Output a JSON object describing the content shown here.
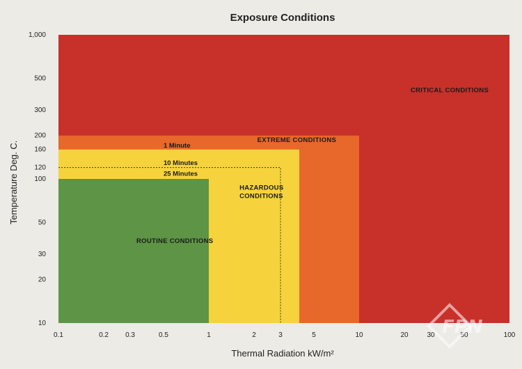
{
  "chart_data": {
    "type": "heatmap",
    "title": "Exposure Conditions",
    "xlabel": "Thermal Radiation kW/m²",
    "ylabel": "Temperature Deg. C.",
    "x_scale": "log",
    "y_scale": "log",
    "xlim": [
      0.1,
      100
    ],
    "ylim": [
      10,
      1000
    ],
    "x_ticks": [
      {
        "value": 0.1,
        "label": "0.1"
      },
      {
        "value": 0.2,
        "label": "0.2"
      },
      {
        "value": 0.3,
        "label": "0.3"
      },
      {
        "value": 0.5,
        "label": "0.5"
      },
      {
        "value": 1,
        "label": "1"
      },
      {
        "value": 2,
        "label": "2"
      },
      {
        "value": 3,
        "label": "3"
      },
      {
        "value": 5,
        "label": "5"
      },
      {
        "value": 10,
        "label": "10"
      },
      {
        "value": 20,
        "label": "20"
      },
      {
        "value": 30,
        "label": "30"
      },
      {
        "value": 50,
        "label": "50"
      },
      {
        "value": 100,
        "label": "100"
      }
    ],
    "y_ticks": [
      {
        "value": 10,
        "label": "10"
      },
      {
        "value": 20,
        "label": "20"
      },
      {
        "value": 30,
        "label": "30"
      },
      {
        "value": 50,
        "label": "50"
      },
      {
        "value": 100,
        "label": "100"
      },
      {
        "value": 120,
        "label": "120"
      },
      {
        "value": 160,
        "label": "160"
      },
      {
        "value": 200,
        "label": "200"
      },
      {
        "value": 300,
        "label": "300"
      },
      {
        "value": 500,
        "label": "500"
      },
      {
        "value": 1000,
        "label": "1,000"
      }
    ],
    "zones": [
      {
        "name": "CRITICAL CONDITIONS",
        "x_max": 100,
        "y_max": 1000,
        "color": "#c8302a",
        "label_at": [
          22,
          400
        ]
      },
      {
        "name": "EXTREME CONDITIONS",
        "x_max": 10,
        "y_max": 200,
        "color": "#e8672a",
        "label_at": [
          2.1,
          180
        ]
      },
      {
        "name": "HAZARDOUS CONDITIONS",
        "lines": [
          "HAZARDOUS",
          "CONDITIONS"
        ],
        "x_max": 4,
        "y_max": 160,
        "color": "#f6d33c",
        "label_at": [
          1.6,
          84
        ]
      },
      {
        "name": "ROUTINE CONDITIONS",
        "x_max": 1,
        "y_max": 100,
        "color": "#5e9445",
        "label_at": [
          0.33,
          36
        ]
      }
    ],
    "limits": [
      {
        "label": "1 Minute",
        "y": 160,
        "label_at": [
          0.5,
          165
        ]
      },
      {
        "label": "10 Minutes",
        "y": 120,
        "x_max": 3,
        "label_at": [
          0.5,
          125
        ]
      },
      {
        "label": "25 Minutes",
        "y": 100,
        "label_at": [
          0.5,
          105
        ]
      }
    ]
  },
  "watermark": {
    "text": "FPN"
  }
}
